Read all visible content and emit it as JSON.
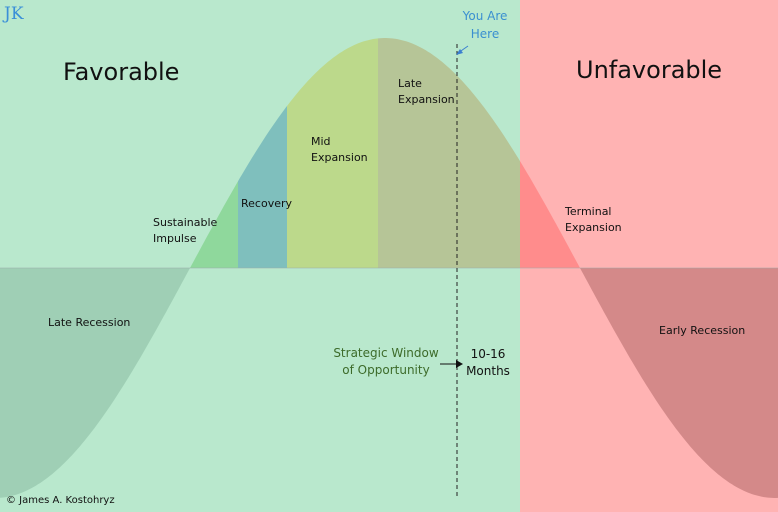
{
  "logo": "JK",
  "marker": [
    "You Are",
    "Here"
  ],
  "zones": {
    "left": "Favorable",
    "right": "Unfavorable"
  },
  "phases": {
    "late_recession": [
      "Late Recession"
    ],
    "sustainable_impulse": [
      "Sustainable",
      "Impulse"
    ],
    "recovery": [
      "Recovery"
    ],
    "mid_expansion": [
      "Mid",
      "Expansion"
    ],
    "late_expansion": [
      "Late",
      "Expansion"
    ],
    "terminal_expansion": [
      "Terminal",
      "Expansion"
    ],
    "early_recession": [
      "Early Recession"
    ]
  },
  "window": {
    "label": [
      "Strategic Window",
      "of Opportunity"
    ],
    "duration": [
      "10-16",
      "Months"
    ]
  },
  "copyright": "© James A. Kostohryz"
}
